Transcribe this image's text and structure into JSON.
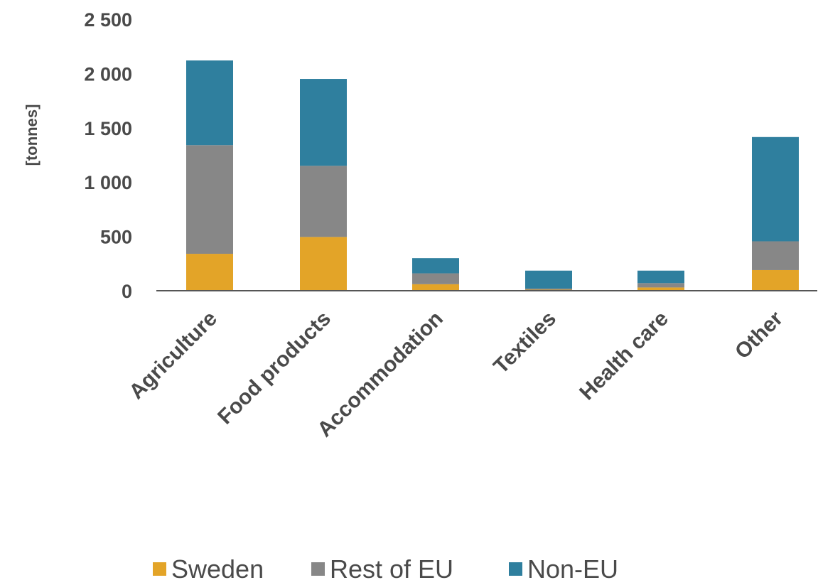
{
  "chart_data": {
    "type": "bar",
    "stacked": true,
    "title": "",
    "xlabel": "",
    "ylabel": "[tonnes]",
    "ylim": [
      0,
      2500
    ],
    "yticks": [
      0,
      500,
      1000,
      1500,
      2000,
      2500
    ],
    "ytick_labels": [
      "0",
      "500",
      "1 000",
      "1 500",
      "2 000",
      "2 500"
    ],
    "grid": false,
    "legend_position": "bottom",
    "categories": [
      "Agriculture",
      "Food products",
      "Accommodation",
      "Textiles",
      "Health care",
      "Other"
    ],
    "series": [
      {
        "name": "Sweden",
        "color": "#e3a428",
        "values": [
          340,
          495,
          60,
          10,
          30,
          190
        ]
      },
      {
        "name": "Rest of EU",
        "color": "#878787",
        "values": [
          1000,
          655,
          100,
          10,
          40,
          265
        ]
      },
      {
        "name": "Non-EU",
        "color": "#2f7f9e",
        "values": [
          780,
          800,
          140,
          165,
          115,
          960
        ]
      }
    ]
  }
}
